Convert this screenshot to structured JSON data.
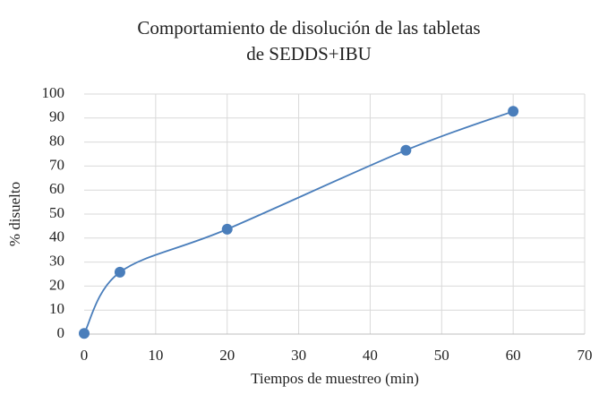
{
  "chart_data": {
    "type": "scatter",
    "title": [
      "Comportamiento de disolución de las tabletas",
      "de SEDDS+IBU"
    ],
    "xlabel": "Tiempos de muestreo (min)",
    "ylabel": "% disuelto",
    "series": [
      {
        "color": "#4a7ebb",
        "x": [
          0,
          5,
          20,
          45,
          60
        ],
        "values": [
          0.3,
          25.8,
          43.7,
          76.6,
          92.8
        ]
      }
    ],
    "xlim": [
      0,
      70
    ],
    "xticks": [
      0,
      10,
      20,
      30,
      40,
      50,
      60,
      70
    ],
    "ylim": [
      0,
      100
    ],
    "yticks": [
      0,
      10,
      20,
      30,
      40,
      50,
      60,
      70,
      80,
      90,
      100
    ],
    "grid": true,
    "smooth": true
  }
}
